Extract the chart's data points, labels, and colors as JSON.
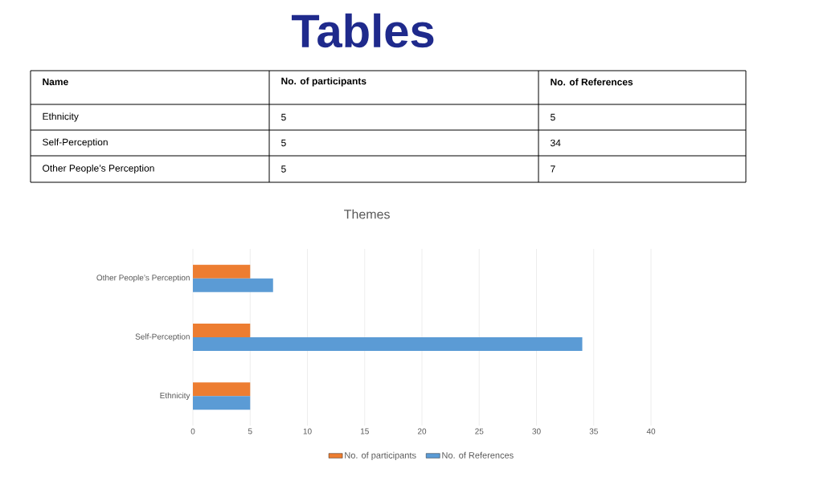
{
  "chart_data": {
    "type": "bar",
    "orientation": "horizontal",
    "title": "Themes",
    "annotations": [
      "Tables",
      "Name",
      "5",
      "5",
      "5",
      "34",
      "5",
      "7"
    ],
    "categories": [
      "Other People’s Perception",
      "Self-Perception",
      "Ethnicity"
    ],
    "series": [
      {
        "name": "No. of participants",
        "color": "#ed7d31",
        "values": [
          5,
          5,
          5
        ]
      },
      {
        "name": "No. of References",
        "color": "#5b9bd5",
        "values": [
          7,
          34,
          5
        ]
      }
    ],
    "xlim": [
      0,
      40
    ],
    "xticks": [
      0,
      5,
      10,
      15,
      20,
      25,
      30,
      35,
      40
    ],
    "grid": "x",
    "legend": "bottom"
  }
}
